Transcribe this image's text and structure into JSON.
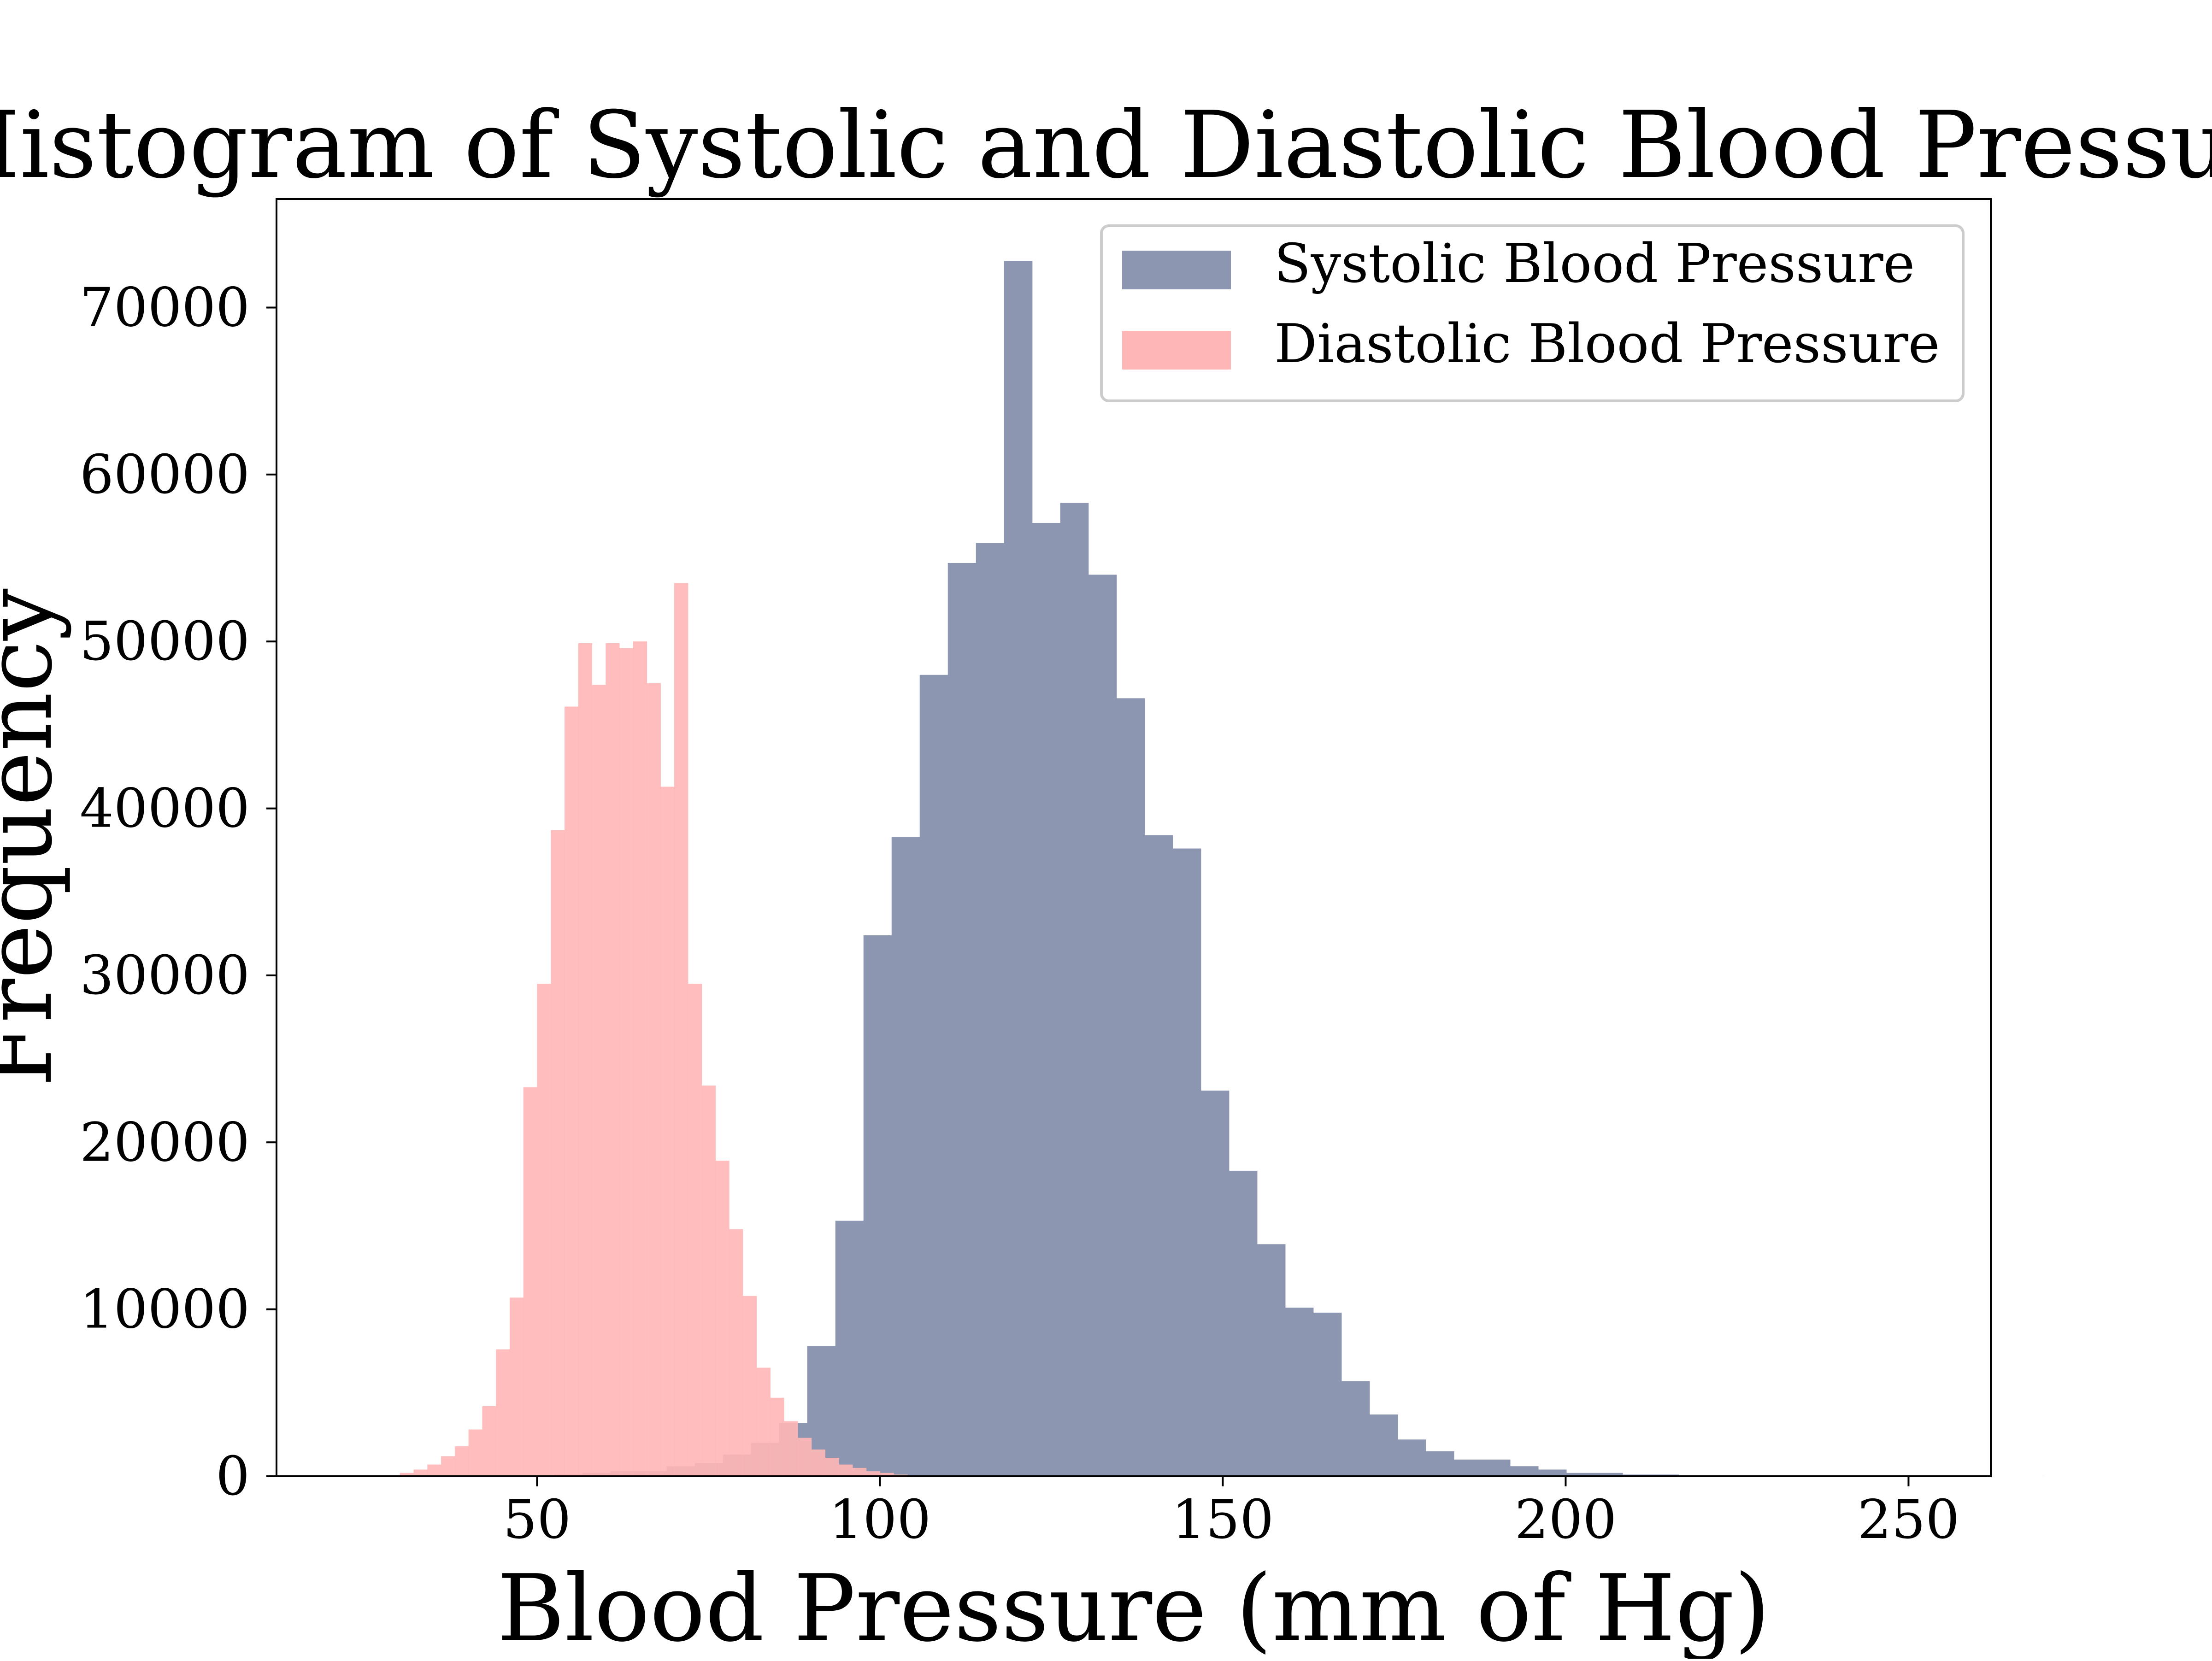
{
  "chart_data": {
    "type": "bar",
    "title": "Histogram of Systolic and Diastolic Blood Pressure",
    "xlabel": "Blood Pressure (mm of Hg)",
    "ylabel": "Frequency",
    "xlim": [
      12,
      262
    ],
    "ylim": [
      0,
      76500
    ],
    "x_ticks": [
      50,
      100,
      150,
      200,
      250
    ],
    "y_ticks": [
      0,
      10000,
      20000,
      30000,
      40000,
      50000,
      60000,
      70000
    ],
    "grid": false,
    "legend_position": "upper right",
    "colors": {
      "systolic": "#8d96b0",
      "diastolic": "#ffb6b6",
      "overlap": "#c5868e"
    },
    "series": [
      {
        "name": "Systolic Blood Pressure",
        "color": "#8d96b0",
        "bin_start": 32,
        "bin_width": 4.1,
        "values": [
          0,
          0,
          0,
          0,
          0,
          100,
          200,
          300,
          300,
          600,
          800,
          1300,
          2000,
          3200,
          7800,
          15300,
          32400,
          38300,
          48000,
          54700,
          55900,
          72800,
          57100,
          58300,
          54000,
          46600,
          38400,
          37600,
          23100,
          18300,
          13900,
          10100,
          9800,
          5700,
          3700,
          2200,
          1500,
          1000,
          1000,
          600,
          400,
          200,
          200,
          100,
          100,
          50,
          50,
          30,
          20,
          20,
          10,
          10,
          10,
          10,
          5,
          5,
          5,
          5
        ]
      },
      {
        "name": "Diastolic Blood Pressure",
        "color": "#ffb6b6",
        "bin_start": 30,
        "bin_width": 2.0,
        "values": [
          200,
          400,
          700,
          1200,
          1800,
          2800,
          4200,
          7600,
          10700,
          23300,
          29500,
          38700,
          46100,
          49900,
          47400,
          49900,
          49600,
          50000,
          47500,
          41300,
          53500,
          29500,
          23400,
          18900,
          14800,
          10800,
          6500,
          4700,
          3300,
          2300,
          1600,
          1100,
          700,
          500,
          300,
          200,
          100,
          50,
          30,
          20
        ]
      }
    ]
  }
}
